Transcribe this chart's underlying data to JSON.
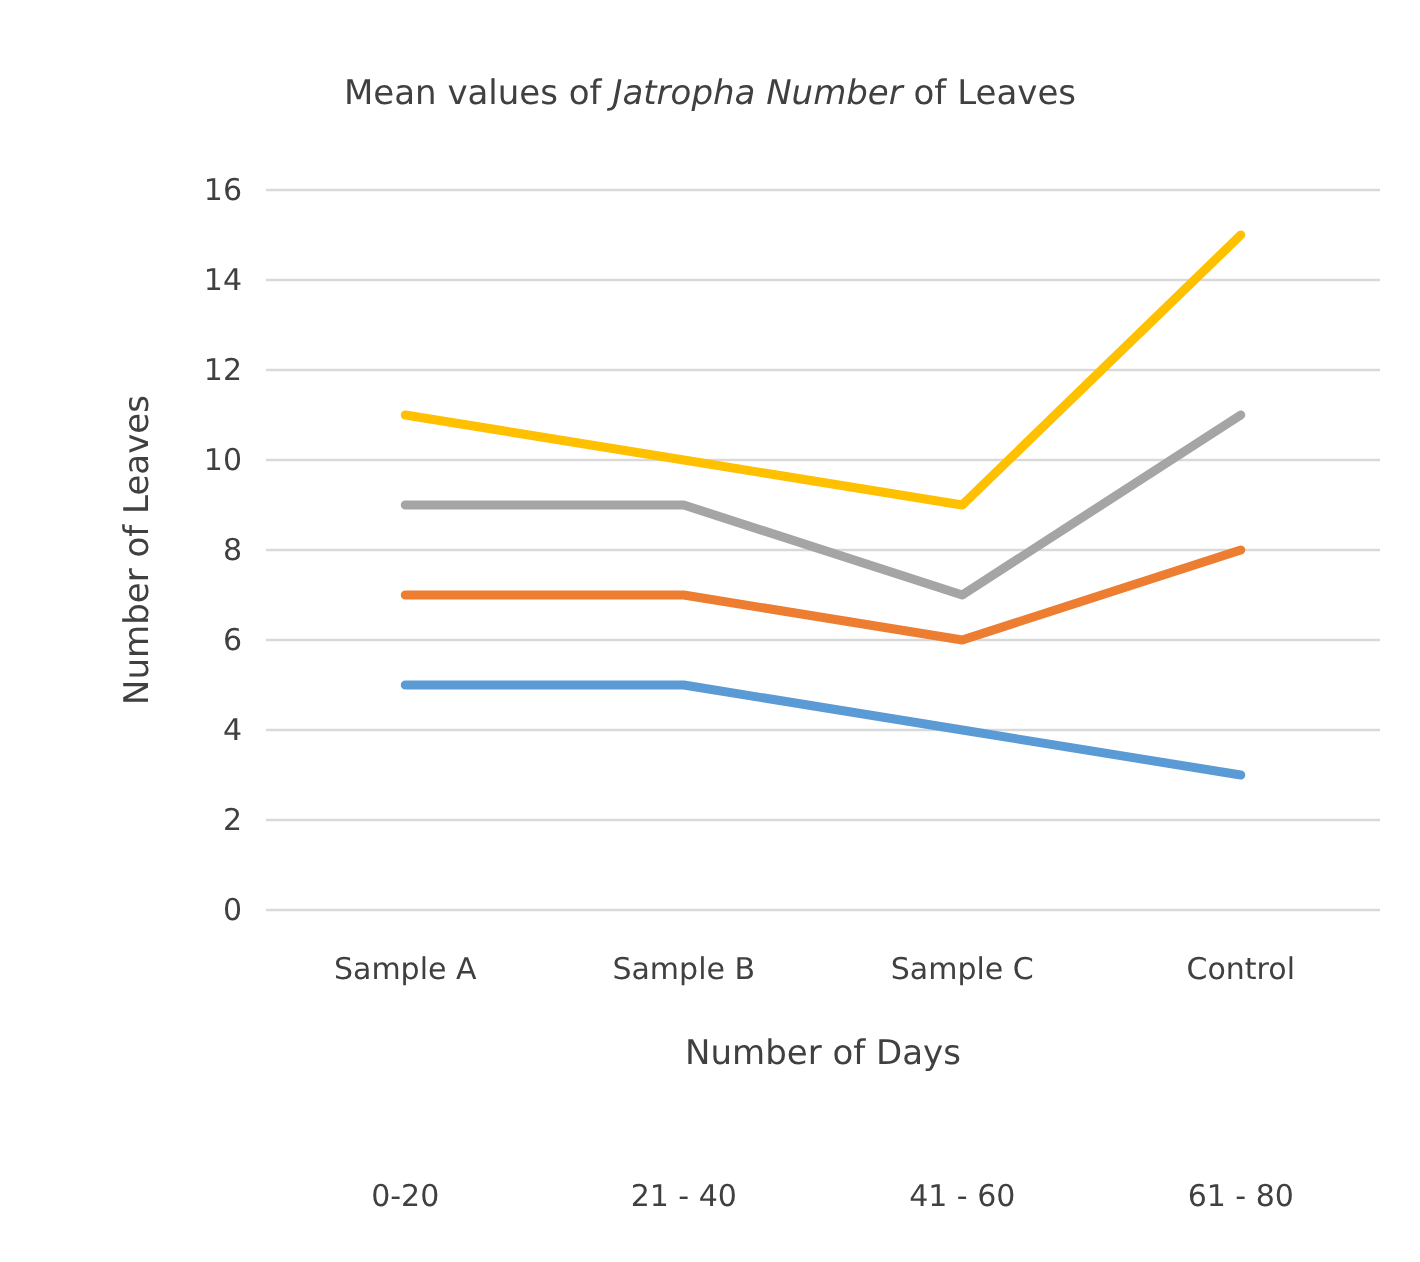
{
  "chart_data": {
    "type": "line",
    "title": "Mean values of Jatropha Number of Leaves",
    "xlabel": "Number of Days",
    "ylabel": "Number of Leaves",
    "categories": [
      "Sample A",
      "Sample B",
      "Sample C",
      "Control"
    ],
    "series": [
      {
        "color": "#5b9bd5",
        "values": [
          5,
          5,
          4,
          3
        ]
      },
      {
        "color": "#ed7d31",
        "values": [
          7,
          7,
          6,
          8
        ]
      },
      {
        "color": "#a5a5a5",
        "values": [
          9,
          9,
          7,
          11
        ]
      },
      {
        "color": "#ffc000",
        "values": [
          11,
          10,
          9,
          15
        ]
      }
    ],
    "ylim": [
      0,
      16
    ],
    "yticks": [
      0,
      2,
      4,
      6,
      8,
      10,
      12,
      14,
      16
    ],
    "grid": "y",
    "marker": "none",
    "line_style": "solid",
    "annotations": [
      "0-20",
      "21 - 40",
      "41 - 60",
      "61 - 80"
    ]
  }
}
